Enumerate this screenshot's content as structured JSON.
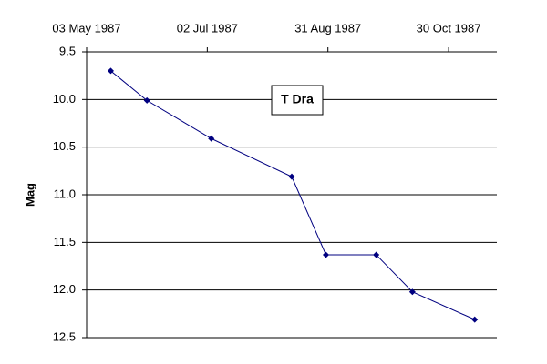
{
  "chart_data": {
    "type": "line",
    "title": "T Dra",
    "y_label": "Mag",
    "x": [
      "1987-05-15",
      "1987-06-02",
      "1987-07-04",
      "1987-08-13",
      "1987-08-30",
      "1987-09-24",
      "1987-10-12",
      "1987-11-12"
    ],
    "series": [
      {
        "color": "#000080",
        "values": [
          9.7,
          10.01,
          10.41,
          10.81,
          11.63,
          11.63,
          12.02,
          12.31
        ]
      }
    ],
    "xlim": [
      "1987-05-03",
      "1987-11-23"
    ],
    "xticks": [
      {
        "value": "1987-05-03",
        "label": "03 May 1987"
      },
      {
        "value": "1987-07-02",
        "label": "02 Jul 1987"
      },
      {
        "value": "1987-08-31",
        "label": "31 Aug 1987"
      },
      {
        "value": "1987-10-30",
        "label": "30 Oct 1987"
      }
    ],
    "ylim": [
      12.5,
      9.5
    ],
    "yticks": [
      9.5,
      {
        "value": 10,
        "label": "10.0"
      },
      10.5,
      {
        "value": 11,
        "label": "11.0"
      },
      11.5,
      {
        "value": 12,
        "label": "12.0"
      },
      12.5
    ],
    "grid": true
  }
}
